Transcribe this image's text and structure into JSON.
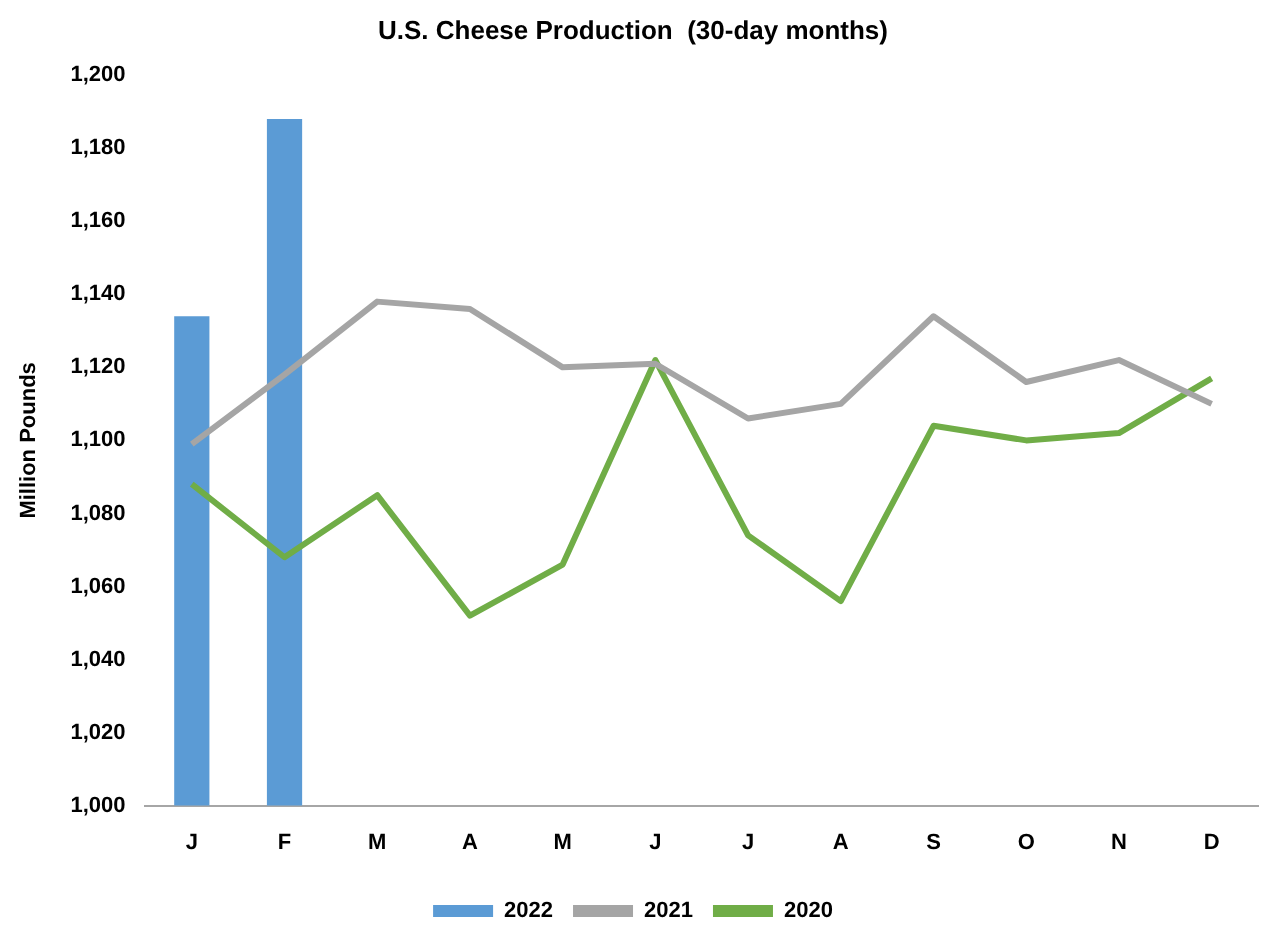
{
  "chart_data": {
    "type": "bar",
    "title": "U.S. Cheese Production  (30-day months)",
    "ylabel": "Million Pounds",
    "categories": [
      "J",
      "F",
      "M",
      "A",
      "M",
      "J",
      "J",
      "A",
      "S",
      "O",
      "N",
      "D"
    ],
    "series": [
      {
        "name": "2022",
        "color": "#5b9bd5",
        "values": [
          1134,
          1188,
          null,
          null,
          null,
          null,
          null,
          null,
          null,
          null,
          null,
          null
        ]
      },
      {
        "name": "2021",
        "type": "line",
        "color": "#a5a5a5",
        "values": [
          1099,
          1118,
          1138,
          1136,
          1120,
          1121,
          1106,
          1110,
          1134,
          1116,
          1122,
          1110
        ]
      },
      {
        "name": "2020",
        "type": "line",
        "color": "#70ad47",
        "values": [
          1088,
          1068,
          1085,
          1052,
          1066,
          1122,
          1074,
          1056,
          1104,
          1100,
          1102,
          1117
        ]
      }
    ],
    "ylim": [
      1000,
      1200
    ],
    "yticks": [
      {
        "value": 1000,
        "label": "1,000"
      },
      {
        "value": 1020,
        "label": "1,020"
      },
      {
        "value": 1040,
        "label": "1,040"
      },
      {
        "value": 1060,
        "label": "1,060"
      },
      {
        "value": 1080,
        "label": "1,080"
      },
      {
        "value": 1100,
        "label": "1,100"
      },
      {
        "value": 1120,
        "label": "1,120"
      },
      {
        "value": 1140,
        "label": "1,140"
      },
      {
        "value": 1160,
        "label": "1,160"
      },
      {
        "value": 1180,
        "label": "1,180"
      },
      {
        "value": 1200,
        "label": "1,200"
      }
    ],
    "grid": false,
    "legend": "bottom",
    "marker": "none"
  }
}
